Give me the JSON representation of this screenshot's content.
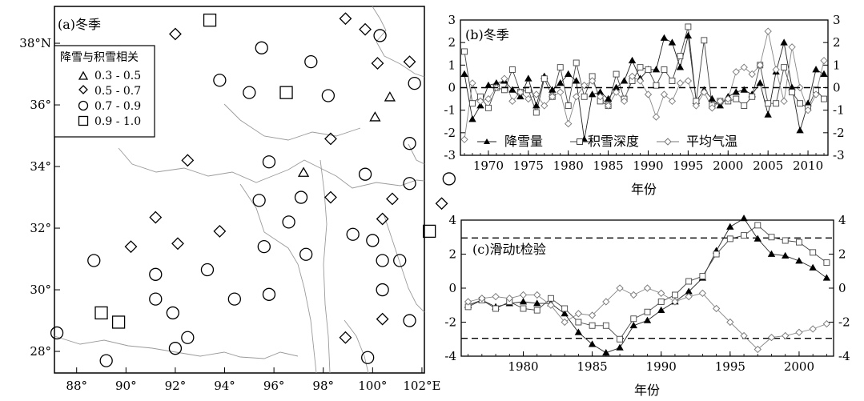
{
  "map": {
    "panel_label": "(a)冬季",
    "legend_title": "降雪与积雪相关",
    "legend": [
      {
        "symbol": "triangle",
        "label": "0.3 - 0.5"
      },
      {
        "symbol": "diamond",
        "label": "0.5 - 0.7"
      },
      {
        "symbol": "circle",
        "label": "0.7 - 0.9"
      },
      {
        "symbol": "square",
        "label": "0.9 - 1.0"
      }
    ],
    "lon_ticks": [
      "88°",
      "90°",
      "92°",
      "94°",
      "96°",
      "98°",
      "100°",
      "102°E"
    ],
    "lat_ticks": [
      "38°N",
      "36°",
      "34°",
      "32°",
      "30°",
      "28°"
    ],
    "stations": [
      {
        "lon": 93.4,
        "lat": 38.75,
        "class": "square"
      },
      {
        "lon": 96.5,
        "lat": 36.4,
        "class": "square"
      },
      {
        "lon": 102.3,
        "lat": 31.9,
        "class": "square"
      },
      {
        "lon": 89.0,
        "lat": 29.25,
        "class": "square"
      },
      {
        "lon": 89.7,
        "lat": 28.95,
        "class": "square"
      },
      {
        "lon": 100.7,
        "lat": 36.25,
        "class": "triangle"
      },
      {
        "lon": 100.1,
        "lat": 35.6,
        "class": "triangle"
      },
      {
        "lon": 97.2,
        "lat": 33.8,
        "class": "triangle"
      },
      {
        "lon": 92.0,
        "lat": 38.3,
        "class": "diamond"
      },
      {
        "lon": 98.9,
        "lat": 38.8,
        "class": "diamond"
      },
      {
        "lon": 99.7,
        "lat": 38.45,
        "class": "diamond"
      },
      {
        "lon": 100.2,
        "lat": 37.35,
        "class": "diamond"
      },
      {
        "lon": 101.5,
        "lat": 37.4,
        "class": "diamond"
      },
      {
        "lon": 98.3,
        "lat": 34.9,
        "class": "diamond"
      },
      {
        "lon": 92.5,
        "lat": 34.2,
        "class": "diamond"
      },
      {
        "lon": 98.3,
        "lat": 33.0,
        "class": "diamond"
      },
      {
        "lon": 100.8,
        "lat": 32.95,
        "class": "diamond"
      },
      {
        "lon": 102.8,
        "lat": 32.8,
        "class": "diamond"
      },
      {
        "lon": 100.4,
        "lat": 32.3,
        "class": "diamond"
      },
      {
        "lon": 91.2,
        "lat": 32.35,
        "class": "diamond"
      },
      {
        "lon": 93.8,
        "lat": 31.9,
        "class": "diamond"
      },
      {
        "lon": 90.2,
        "lat": 31.4,
        "class": "diamond"
      },
      {
        "lon": 92.1,
        "lat": 31.5,
        "class": "diamond"
      },
      {
        "lon": 100.4,
        "lat": 29.05,
        "class": "diamond"
      },
      {
        "lon": 98.9,
        "lat": 28.45,
        "class": "diamond"
      },
      {
        "lon": 95.5,
        "lat": 37.85,
        "class": "circle"
      },
      {
        "lon": 100.3,
        "lat": 38.25,
        "class": "circle"
      },
      {
        "lon": 97.5,
        "lat": 37.4,
        "class": "circle"
      },
      {
        "lon": 93.8,
        "lat": 36.8,
        "class": "circle"
      },
      {
        "lon": 95.0,
        "lat": 36.4,
        "class": "circle"
      },
      {
        "lon": 98.2,
        "lat": 36.3,
        "class": "circle"
      },
      {
        "lon": 101.7,
        "lat": 36.7,
        "class": "circle"
      },
      {
        "lon": 101.5,
        "lat": 34.75,
        "class": "circle"
      },
      {
        "lon": 95.8,
        "lat": 34.15,
        "class": "circle"
      },
      {
        "lon": 99.7,
        "lat": 33.75,
        "class": "circle"
      },
      {
        "lon": 97.1,
        "lat": 33.0,
        "class": "circle"
      },
      {
        "lon": 95.4,
        "lat": 32.9,
        "class": "circle"
      },
      {
        "lon": 96.6,
        "lat": 32.2,
        "class": "circle"
      },
      {
        "lon": 101.5,
        "lat": 33.45,
        "class": "circle"
      },
      {
        "lon": 103.1,
        "lat": 33.6,
        "class": "circle"
      },
      {
        "lon": 99.2,
        "lat": 31.8,
        "class": "circle"
      },
      {
        "lon": 95.6,
        "lat": 31.4,
        "class": "circle"
      },
      {
        "lon": 97.3,
        "lat": 31.15,
        "class": "circle"
      },
      {
        "lon": 100.0,
        "lat": 31.6,
        "class": "circle"
      },
      {
        "lon": 100.4,
        "lat": 30.95,
        "class": "circle"
      },
      {
        "lon": 101.1,
        "lat": 30.95,
        "class": "circle"
      },
      {
        "lon": 88.7,
        "lat": 30.95,
        "class": "circle"
      },
      {
        "lon": 93.3,
        "lat": 30.65,
        "class": "circle"
      },
      {
        "lon": 91.2,
        "lat": 30.5,
        "class": "circle"
      },
      {
        "lon": 91.2,
        "lat": 29.7,
        "class": "circle"
      },
      {
        "lon": 94.4,
        "lat": 29.7,
        "class": "circle"
      },
      {
        "lon": 95.8,
        "lat": 29.85,
        "class": "circle"
      },
      {
        "lon": 100.4,
        "lat": 30.0,
        "class": "circle"
      },
      {
        "lon": 91.9,
        "lat": 29.25,
        "class": "circle"
      },
      {
        "lon": 101.5,
        "lat": 29.0,
        "class": "circle"
      },
      {
        "lon": 92.5,
        "lat": 28.45,
        "class": "circle"
      },
      {
        "lon": 92.0,
        "lat": 28.1,
        "class": "circle"
      },
      {
        "lon": 87.2,
        "lat": 28.6,
        "class": "circle"
      },
      {
        "lon": 89.2,
        "lat": 27.7,
        "class": "circle"
      },
      {
        "lon": 99.8,
        "lat": 27.8,
        "class": "circle"
      }
    ]
  },
  "panel_b": {
    "panel_label": "(b)冬季",
    "xlabel": "年份",
    "xticks": [
      "1970",
      "1975",
      "1980",
      "1985",
      "1990",
      "1995",
      "2000",
      "2005",
      "2010"
    ],
    "yticks": [
      "3",
      "2",
      "1",
      "0",
      "-1",
      "-2",
      "-3"
    ],
    "legend": [
      "降雪量",
      "积雪深度",
      "平均气温"
    ],
    "markers": [
      "triangle-filled",
      "square-open",
      "diamond-open"
    ],
    "colors": {
      "series1": "#222222",
      "series2": "#444444",
      "series3": "#777777",
      "zero_line": "#000000"
    }
  },
  "panel_c": {
    "panel_label": "(c)滑动t检验",
    "xlabel": "年份",
    "xticks": [
      "1980",
      "1985",
      "1990",
      "1995",
      "2000"
    ],
    "yticks": [
      "4",
      "2",
      "0",
      "-2",
      "-4"
    ]
  },
  "chart_data": [
    {
      "type": "line",
      "x": [
        1967,
        1968,
        1969,
        1970,
        1971,
        1972,
        1973,
        1974,
        1975,
        1976,
        1977,
        1978,
        1979,
        1980,
        1981,
        1982,
        1983,
        1984,
        1985,
        1986,
        1987,
        1988,
        1989,
        1990,
        1991,
        1992,
        1993,
        1994,
        1995,
        1996,
        1997,
        1998,
        1999,
        2000,
        2001,
        2002,
        2003,
        2004,
        2005,
        2006,
        2007,
        2008,
        2009,
        2010,
        2011,
        2012
      ],
      "series": [
        {
          "name": "降雪量",
          "values": [
            0.6,
            -1.4,
            -0.8,
            0.1,
            0.2,
            0.3,
            -0.1,
            -0.4,
            0.4,
            -0.8,
            0.5,
            -0.1,
            0.2,
            0.6,
            0.3,
            -2.3,
            -0.3,
            -0.2,
            -0.5,
            0.0,
            0.3,
            1.2,
            0.4,
            0.8,
            0.8,
            2.2,
            2.0,
            0.9,
            2.3,
            -0.6,
            -0.1,
            -0.5,
            -0.8,
            -0.4,
            -0.2,
            -0.1,
            -0.3,
            0.2,
            -1.2,
            0.7,
            2.0,
            0.0,
            -1.9,
            -0.7,
            0.8,
            0.6
          ]
        },
        {
          "name": "积雪深度",
          "values": [
            1.6,
            -0.7,
            -0.4,
            -0.9,
            0.0,
            -0.1,
            0.8,
            -0.2,
            -0.1,
            -1.1,
            0.4,
            -0.4,
            0.9,
            -0.8,
            1.1,
            -0.4,
            0.5,
            -0.6,
            -0.8,
            0.6,
            -0.5,
            0.3,
            0.9,
            0.8,
            0.1,
            0.8,
            0.3,
            1.4,
            2.7,
            -0.6,
            2.1,
            -0.8,
            -0.6,
            -0.6,
            -0.5,
            -0.8,
            -0.4,
            1.0,
            -0.7,
            -0.7,
            0.9,
            -0.2,
            -0.7,
            -0.9,
            -0.1,
            -0.5
          ]
        },
        {
          "name": "平均气温",
          "values": [
            -2.3,
            0.2,
            -0.6,
            -0.5,
            0.0,
            0.4,
            -0.6,
            -0.2,
            -0.5,
            -0.3,
            -0.8,
            -0.4,
            -0.2,
            -1.6,
            -0.4,
            0.1,
            0.3,
            -0.4,
            -0.8,
            -0.2,
            -0.6,
            0.5,
            0.3,
            -0.3,
            -1.3,
            -0.3,
            -0.6,
            0.2,
            0.3,
            -0.8,
            -0.2,
            -0.9,
            -0.6,
            -0.5,
            0.7,
            0.9,
            0.6,
            1.0,
            2.5,
            0.8,
            -0.6,
            1.8,
            0.0,
            -1.0,
            -0.3,
            1.2
          ]
        }
      ],
      "xlabel": "年份",
      "ylim": [
        -3,
        3
      ],
      "xlim": [
        1966.5,
        2012.5
      ],
      "legend_position": "bottom"
    },
    {
      "type": "line",
      "x": [
        1976,
        1977,
        1978,
        1979,
        1980,
        1981,
        1982,
        1983,
        1984,
        1985,
        1986,
        1987,
        1988,
        1989,
        1990,
        1991,
        1992,
        1993,
        1994,
        1995,
        1996,
        1997,
        1998,
        1999,
        2000,
        2001,
        2002
      ],
      "series": [
        {
          "name": "降雪量",
          "values": [
            -1.0,
            -0.7,
            -1.1,
            -0.9,
            -0.8,
            -0.9,
            -0.9,
            -1.5,
            -2.6,
            -3.3,
            -3.8,
            -3.5,
            -2.2,
            -1.9,
            -1.3,
            -0.8,
            -0.2,
            0.6,
            2.2,
            3.6,
            4.1,
            2.9,
            2.0,
            1.9,
            1.6,
            1.2,
            0.6
          ]
        },
        {
          "name": "积雪深度",
          "values": [
            -1.1,
            -0.7,
            -1.2,
            -0.8,
            -1.2,
            -1.3,
            -0.6,
            -1.2,
            -2.0,
            -2.2,
            -2.2,
            -3.0,
            -1.8,
            -1.4,
            -0.8,
            -0.4,
            0.4,
            0.7,
            2.0,
            2.9,
            3.1,
            3.7,
            3.0,
            2.8,
            2.7,
            2.1,
            1.5
          ]
        },
        {
          "name": "平均气温",
          "values": [
            -0.8,
            -0.6,
            -0.5,
            -0.6,
            -0.4,
            -0.4,
            -1.0,
            -2.0,
            -1.5,
            -1.6,
            -0.8,
            0.0,
            -0.4,
            0.0,
            -0.3,
            -0.8,
            -0.5,
            -0.3,
            -1.2,
            -2.0,
            -2.8,
            -3.6,
            -2.9,
            -2.8,
            -2.6,
            -2.4,
            -2.1
          ]
        }
      ],
      "xlabel": "年份",
      "ylim": [
        -4,
        4
      ],
      "xlim": [
        1975.5,
        2002.5
      ],
      "reference_lines": [
        2.95,
        -2.95
      ]
    }
  ]
}
